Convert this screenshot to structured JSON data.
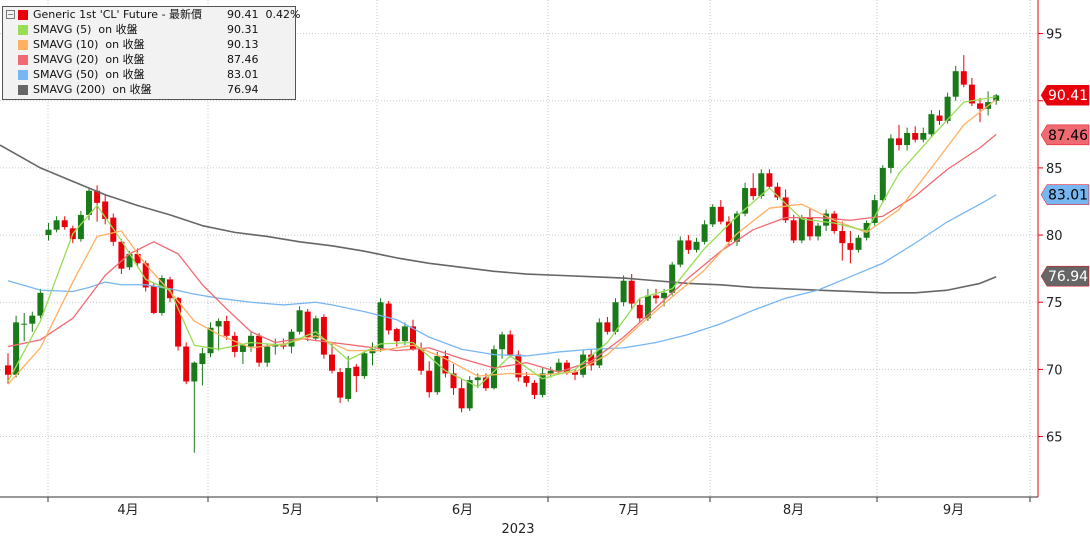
{
  "chart_data": {
    "type": "candlestick",
    "legend": [
      {
        "name": "Generic 1st 'CL' Future - 最新價",
        "value": "90.41  0.42%",
        "color": "#e8000b"
      },
      {
        "name": "SMAVG (5)  on 收盤",
        "value": "90.31",
        "color": "#99dd55"
      },
      {
        "name": "SMAVG (10)  on 收盤",
        "value": "90.13",
        "color": "#ffb060"
      },
      {
        "name": "SMAVG (20)  on 收盤",
        "value": "87.46",
        "color": "#f06a72"
      },
      {
        "name": "SMAVG (50)  on 收盤",
        "value": "83.01",
        "color": "#77b6f0"
      },
      {
        "name": "SMAVG (200)  on 收盤",
        "value": "76.94",
        "color": "#666666"
      }
    ],
    "x_labels": [
      "4月",
      "5月",
      "6月",
      "7月",
      "8月",
      "9月"
    ],
    "x_title": "2023",
    "y_ticks": [
      65,
      70,
      75,
      80,
      85,
      90,
      95
    ],
    "ylim": [
      60.5,
      97.5
    ],
    "price_tags": [
      {
        "value": 90.41,
        "label": "90.41",
        "bg": "#e8000b",
        "fg": "#ffffff"
      },
      {
        "value": 87.46,
        "label": "87.46",
        "bg": "#f06a72",
        "fg": "#000000"
      },
      {
        "value": 83.01,
        "label": "83.01",
        "bg": "#77b6f0",
        "fg": "#000000"
      },
      {
        "value": 76.94,
        "label": "76.94",
        "bg": "#666666",
        "fg": "#ffffff"
      }
    ],
    "colors": {
      "up": "#1a7a1a",
      "down": "#e8000b"
    },
    "ohlc": [
      [
        70.3,
        71.2,
        68.9,
        69.6
      ],
      [
        69.6,
        74.0,
        69.4,
        73.5
      ],
      [
        73.4,
        74.2,
        72.1,
        73.4
      ],
      [
        73.4,
        74.3,
        72.8,
        74.0
      ],
      [
        74.0,
        76.0,
        73.8,
        75.7
      ],
      [
        80.0,
        80.9,
        79.6,
        80.4
      ],
      [
        80.4,
        81.4,
        80.2,
        81.1
      ],
      [
        81.1,
        81.4,
        80.4,
        80.6
      ],
      [
        80.5,
        80.7,
        79.4,
        79.7
      ],
      [
        79.7,
        81.8,
        79.5,
        81.5
      ],
      [
        81.5,
        83.5,
        81.1,
        83.3
      ],
      [
        83.3,
        83.7,
        81.0,
        82.4
      ],
      [
        82.5,
        83.0,
        80.8,
        81.2
      ],
      [
        81.3,
        81.6,
        79.2,
        79.5
      ],
      [
        79.5,
        79.7,
        77.1,
        77.5
      ],
      [
        77.6,
        78.8,
        77.4,
        78.6
      ],
      [
        78.6,
        79.0,
        77.6,
        77.9
      ],
      [
        77.9,
        78.1,
        75.8,
        76.1
      ],
      [
        76.2,
        76.4,
        74.1,
        74.2
      ],
      [
        74.2,
        77.0,
        74.0,
        76.8
      ],
      [
        76.7,
        76.9,
        75.0,
        75.3
      ],
      [
        75.3,
        75.4,
        71.4,
        71.7
      ],
      [
        71.7,
        72.0,
        68.9,
        69.1
      ],
      [
        69.1,
        70.6,
        63.8,
        70.5
      ],
      [
        70.4,
        71.6,
        68.8,
        71.2
      ],
      [
        71.2,
        73.5,
        70.9,
        73.1
      ],
      [
        73.2,
        73.8,
        71.4,
        73.6
      ],
      [
        73.6,
        74.0,
        72.2,
        72.5
      ],
      [
        72.5,
        72.8,
        70.9,
        71.3
      ],
      [
        71.3,
        71.9,
        70.4,
        71.8
      ],
      [
        71.7,
        72.8,
        71.3,
        72.5
      ],
      [
        72.5,
        72.7,
        70.2,
        70.5
      ],
      [
        70.5,
        71.9,
        70.2,
        71.7
      ],
      [
        71.7,
        72.3,
        71.1,
        71.9
      ],
      [
        71.8,
        72.3,
        71.5,
        71.7
      ],
      [
        71.7,
        73.0,
        71.2,
        72.8
      ],
      [
        72.8,
        74.7,
        72.6,
        74.4
      ],
      [
        74.3,
        74.5,
        72.1,
        72.4
      ],
      [
        72.3,
        74.0,
        72.1,
        73.8
      ],
      [
        73.9,
        74.1,
        70.8,
        71.1
      ],
      [
        71.1,
        72.0,
        69.7,
        69.9
      ],
      [
        69.8,
        70.1,
        67.5,
        67.9
      ],
      [
        67.8,
        71.0,
        67.6,
        70.1
      ],
      [
        70.2,
        70.4,
        68.3,
        69.5
      ],
      [
        69.5,
        71.4,
        69.3,
        71.2
      ],
      [
        71.2,
        72.0,
        70.3,
        71.5
      ],
      [
        71.5,
        75.3,
        71.3,
        75.0
      ],
      [
        74.9,
        75.1,
        72.6,
        72.9
      ],
      [
        73.0,
        73.1,
        71.7,
        72.1
      ],
      [
        72.1,
        73.5,
        71.8,
        73.2
      ],
      [
        73.2,
        73.7,
        71.4,
        71.5
      ],
      [
        71.5,
        72.0,
        69.6,
        69.9
      ],
      [
        69.9,
        70.6,
        67.9,
        68.3
      ],
      [
        68.3,
        71.3,
        68.1,
        71.0
      ],
      [
        71.0,
        71.4,
        69.4,
        69.7
      ],
      [
        69.7,
        70.4,
        68.1,
        68.6
      ],
      [
        68.6,
        69.3,
        66.8,
        67.1
      ],
      [
        67.1,
        69.5,
        66.9,
        69.2
      ],
      [
        69.2,
        69.7,
        68.6,
        69.4
      ],
      [
        69.4,
        69.7,
        68.4,
        68.6
      ],
      [
        68.6,
        71.8,
        68.5,
        71.5
      ],
      [
        71.5,
        72.8,
        70.8,
        72.6
      ],
      [
        72.6,
        72.9,
        70.9,
        71.1
      ],
      [
        71.1,
        71.4,
        69.1,
        69.4
      ],
      [
        69.5,
        69.8,
        68.7,
        69.0
      ],
      [
        69.0,
        69.2,
        67.8,
        68.1
      ],
      [
        68.1,
        70.1,
        67.9,
        69.7
      ],
      [
        69.7,
        70.2,
        69.4,
        69.9
      ],
      [
        69.9,
        70.8,
        69.6,
        70.5
      ],
      [
        70.5,
        70.7,
        69.6,
        69.8
      ],
      [
        69.8,
        70.0,
        69.2,
        69.6
      ],
      [
        69.6,
        71.4,
        69.4,
        71.1
      ],
      [
        71.1,
        71.5,
        69.9,
        70.3
      ],
      [
        70.3,
        73.8,
        70.1,
        73.5
      ],
      [
        73.5,
        73.9,
        72.6,
        72.8
      ],
      [
        72.8,
        75.3,
        72.6,
        75.0
      ],
      [
        75.0,
        77.0,
        74.7,
        76.6
      ],
      [
        76.6,
        77.1,
        74.5,
        74.9
      ],
      [
        74.8,
        75.3,
        73.5,
        73.8
      ],
      [
        73.8,
        76.0,
        73.6,
        75.5
      ],
      [
        75.5,
        76.0,
        74.9,
        75.3
      ],
      [
        75.3,
        76.0,
        74.7,
        75.7
      ],
      [
        75.7,
        78.0,
        75.5,
        77.8
      ],
      [
        77.8,
        79.9,
        77.6,
        79.6
      ],
      [
        79.6,
        80.0,
        78.6,
        78.9
      ],
      [
        78.9,
        79.8,
        78.7,
        79.5
      ],
      [
        79.5,
        81.1,
        79.3,
        80.8
      ],
      [
        80.8,
        82.3,
        80.6,
        82.1
      ],
      [
        82.1,
        82.6,
        80.8,
        81.0
      ],
      [
        81.0,
        81.4,
        79.2,
        79.5
      ],
      [
        79.5,
        81.8,
        79.2,
        81.6
      ],
      [
        81.6,
        83.9,
        81.4,
        83.5
      ],
      [
        83.5,
        84.6,
        82.6,
        82.9
      ],
      [
        82.9,
        84.9,
        82.7,
        84.6
      ],
      [
        84.6,
        84.9,
        83.5,
        83.6
      ],
      [
        83.6,
        83.9,
        82.6,
        82.8
      ],
      [
        82.8,
        83.4,
        80.9,
        81.1
      ],
      [
        81.1,
        81.5,
        79.4,
        79.6
      ],
      [
        79.6,
        81.5,
        79.4,
        81.3
      ],
      [
        81.3,
        82.0,
        79.6,
        79.9
      ],
      [
        79.9,
        80.9,
        79.6,
        80.7
      ],
      [
        80.7,
        81.9,
        80.3,
        81.6
      ],
      [
        81.6,
        81.8,
        80.1,
        80.3
      ],
      [
        80.3,
        81.0,
        78.1,
        79.4
      ],
      [
        79.4,
        80.3,
        77.9,
        78.9
      ],
      [
        78.9,
        80.0,
        78.7,
        79.8
      ],
      [
        79.8,
        81.1,
        79.6,
        80.9
      ],
      [
        80.9,
        83.0,
        80.7,
        82.6
      ],
      [
        82.6,
        85.2,
        82.4,
        85.0
      ],
      [
        85.0,
        87.5,
        84.6,
        87.2
      ],
      [
        87.2,
        88.2,
        86.3,
        86.7
      ],
      [
        86.7,
        88.0,
        86.3,
        87.6
      ],
      [
        87.6,
        88.1,
        86.9,
        87.1
      ],
      [
        87.1,
        88.0,
        86.9,
        87.6
      ],
      [
        87.5,
        89.3,
        87.3,
        89.0
      ],
      [
        88.9,
        89.3,
        88.2,
        88.5
      ],
      [
        88.5,
        90.6,
        88.3,
        90.3
      ],
      [
        90.3,
        92.6,
        90.0,
        92.2
      ],
      [
        92.2,
        93.4,
        91.0,
        91.2
      ],
      [
        91.2,
        91.7,
        89.6,
        89.8
      ],
      [
        89.8,
        90.2,
        88.4,
        89.4
      ],
      [
        89.4,
        90.7,
        88.9,
        89.9
      ],
      [
        90.0,
        90.5,
        89.7,
        90.4
      ]
    ],
    "sma5": [
      [
        0,
        69.1
      ],
      [
        4,
        73.6
      ],
      [
        8,
        80.1
      ],
      [
        11,
        82.2
      ],
      [
        14,
        79.6
      ],
      [
        17,
        76.7
      ],
      [
        20,
        75.9
      ],
      [
        23,
        71.8
      ],
      [
        26,
        71.5
      ],
      [
        30,
        72.0
      ],
      [
        34,
        71.8
      ],
      [
        38,
        72.8
      ],
      [
        42,
        70.7
      ],
      [
        46,
        71.9
      ],
      [
        50,
        72.0
      ],
      [
        54,
        69.9
      ],
      [
        58,
        68.7
      ],
      [
        62,
        71.0
      ],
      [
        66,
        69.3
      ],
      [
        70,
        70.0
      ],
      [
        74,
        72.0
      ],
      [
        78,
        75.3
      ],
      [
        82,
        76.0
      ],
      [
        86,
        79.0
      ],
      [
        90,
        81.4
      ],
      [
        94,
        83.5
      ],
      [
        98,
        81.2
      ],
      [
        102,
        80.9
      ],
      [
        106,
        80.3
      ],
      [
        110,
        84.6
      ],
      [
        114,
        87.3
      ],
      [
        118,
        89.9
      ],
      [
        122,
        90.3
      ]
    ],
    "sma10": [
      [
        0,
        68.9
      ],
      [
        4,
        71.6
      ],
      [
        8,
        76.5
      ],
      [
        11,
        79.9
      ],
      [
        14,
        80.3
      ],
      [
        17,
        77.8
      ],
      [
        20,
        75.8
      ],
      [
        23,
        73.6
      ],
      [
        26,
        72.6
      ],
      [
        30,
        71.6
      ],
      [
        34,
        71.9
      ],
      [
        38,
        72.5
      ],
      [
        42,
        71.4
      ],
      [
        46,
        71.4
      ],
      [
        50,
        71.8
      ],
      [
        54,
        70.8
      ],
      [
        58,
        69.5
      ],
      [
        62,
        69.7
      ],
      [
        66,
        69.6
      ],
      [
        70,
        69.8
      ],
      [
        74,
        71.1
      ],
      [
        78,
        73.3
      ],
      [
        82,
        75.4
      ],
      [
        86,
        77.4
      ],
      [
        90,
        80.1
      ],
      [
        94,
        82.0
      ],
      [
        98,
        82.3
      ],
      [
        102,
        81.1
      ],
      [
        106,
        80.2
      ],
      [
        110,
        81.9
      ],
      [
        114,
        85.0
      ],
      [
        118,
        88.2
      ],
      [
        122,
        90.1
      ]
    ],
    "sma20": [
      [
        0,
        71.7
      ],
      [
        4,
        72.2
      ],
      [
        8,
        73.8
      ],
      [
        12,
        77.0
      ],
      [
        15,
        78.6
      ],
      [
        18,
        79.5
      ],
      [
        21,
        78.6
      ],
      [
        24,
        76.3
      ],
      [
        27,
        74.5
      ],
      [
        30,
        72.8
      ],
      [
        33,
        72.0
      ],
      [
        36,
        72.3
      ],
      [
        40,
        72.0
      ],
      [
        44,
        71.7
      ],
      [
        48,
        71.4
      ],
      [
        52,
        71.6
      ],
      [
        56,
        70.8
      ],
      [
        60,
        70.1
      ],
      [
        64,
        70.5
      ],
      [
        68,
        69.8
      ],
      [
        72,
        70.6
      ],
      [
        76,
        72.4
      ],
      [
        80,
        74.6
      ],
      [
        84,
        76.8
      ],
      [
        88,
        78.8
      ],
      [
        92,
        80.4
      ],
      [
        96,
        81.3
      ],
      [
        100,
        81.3
      ],
      [
        104,
        81.1
      ],
      [
        108,
        81.4
      ],
      [
        112,
        82.9
      ],
      [
        116,
        84.9
      ],
      [
        120,
        86.5
      ],
      [
        122,
        87.5
      ]
    ],
    "sma50": [
      [
        0,
        76.6
      ],
      [
        4,
        75.9
      ],
      [
        8,
        75.8
      ],
      [
        10,
        76.1
      ],
      [
        12,
        76.5
      ],
      [
        14,
        76.3
      ],
      [
        17,
        76.3
      ],
      [
        20,
        76.0
      ],
      [
        23,
        75.6
      ],
      [
        26,
        75.3
      ],
      [
        30,
        75.0
      ],
      [
        34,
        74.8
      ],
      [
        38,
        75.0
      ],
      [
        40,
        74.8
      ],
      [
        44,
        74.3
      ],
      [
        48,
        73.7
      ],
      [
        52,
        72.4
      ],
      [
        56,
        71.5
      ],
      [
        60,
        71.1
      ],
      [
        64,
        71.0
      ],
      [
        68,
        71.3
      ],
      [
        72,
        71.5
      ],
      [
        76,
        71.6
      ],
      [
        80,
        72.0
      ],
      [
        84,
        72.6
      ],
      [
        88,
        73.4
      ],
      [
        92,
        74.4
      ],
      [
        96,
        75.3
      ],
      [
        100,
        75.9
      ],
      [
        104,
        76.9
      ],
      [
        108,
        77.9
      ],
      [
        112,
        79.4
      ],
      [
        116,
        81.0
      ],
      [
        120,
        82.3
      ],
      [
        122,
        83.0
      ]
    ],
    "sma200": [
      [
        0,
        86.7
      ],
      [
        4,
        85.0
      ],
      [
        8,
        84.0
      ],
      [
        12,
        83.0
      ],
      [
        16,
        82.2
      ],
      [
        20,
        81.5
      ],
      [
        24,
        80.7
      ],
      [
        28,
        80.2
      ],
      [
        32,
        79.9
      ],
      [
        36,
        79.5
      ],
      [
        40,
        79.2
      ],
      [
        44,
        78.8
      ],
      [
        48,
        78.3
      ],
      [
        52,
        77.9
      ],
      [
        56,
        77.6
      ],
      [
        60,
        77.3
      ],
      [
        64,
        77.1
      ],
      [
        68,
        77.0
      ],
      [
        72,
        76.9
      ],
      [
        76,
        76.8
      ],
      [
        80,
        76.6
      ],
      [
        84,
        76.4
      ],
      [
        88,
        76.3
      ],
      [
        92,
        76.1
      ],
      [
        96,
        76.0
      ],
      [
        100,
        75.9
      ],
      [
        104,
        75.8
      ],
      [
        108,
        75.7
      ],
      [
        112,
        75.7
      ],
      [
        116,
        75.9
      ],
      [
        120,
        76.4
      ],
      [
        122,
        76.9
      ]
    ]
  }
}
